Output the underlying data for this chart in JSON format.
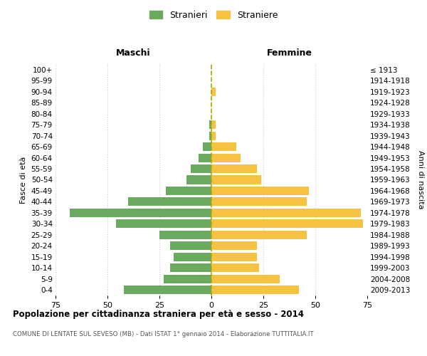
{
  "age_groups": [
    "0-4",
    "5-9",
    "10-14",
    "15-19",
    "20-24",
    "25-29",
    "30-34",
    "35-39",
    "40-44",
    "45-49",
    "50-54",
    "55-59",
    "60-64",
    "65-69",
    "70-74",
    "75-79",
    "80-84",
    "85-89",
    "90-94",
    "95-99",
    "100+"
  ],
  "birth_years": [
    "2009-2013",
    "2004-2008",
    "1999-2003",
    "1994-1998",
    "1989-1993",
    "1984-1988",
    "1979-1983",
    "1974-1978",
    "1969-1973",
    "1964-1968",
    "1959-1963",
    "1954-1958",
    "1949-1953",
    "1944-1948",
    "1939-1943",
    "1934-1938",
    "1929-1933",
    "1924-1928",
    "1919-1923",
    "1914-1918",
    "≤ 1913"
  ],
  "maschi": [
    42,
    23,
    20,
    18,
    20,
    25,
    46,
    68,
    40,
    22,
    12,
    10,
    6,
    4,
    1,
    1,
    0,
    0,
    0,
    0,
    0
  ],
  "femmine": [
    42,
    33,
    23,
    22,
    22,
    46,
    73,
    72,
    46,
    47,
    24,
    22,
    14,
    12,
    2,
    2,
    0,
    0,
    2,
    0,
    0
  ],
  "male_color": "#6aaa5e",
  "female_color": "#f5c242",
  "dashed_line_color": "#aaaa00",
  "background_color": "#ffffff",
  "grid_color": "#cccccc",
  "title": "Popolazione per cittadinanza straniera per età e sesso - 2014",
  "subtitle": "COMUNE DI LENTATE SUL SEVESO (MB) - Dati ISTAT 1° gennaio 2014 - Elaborazione TUTTITALIA.IT",
  "xlabel_left": "Maschi",
  "xlabel_right": "Femmine",
  "ylabel_left": "Fasce di età",
  "ylabel_right": "Anni di nascita",
  "legend_male": "Stranieri",
  "legend_female": "Straniere",
  "xlim": 75
}
